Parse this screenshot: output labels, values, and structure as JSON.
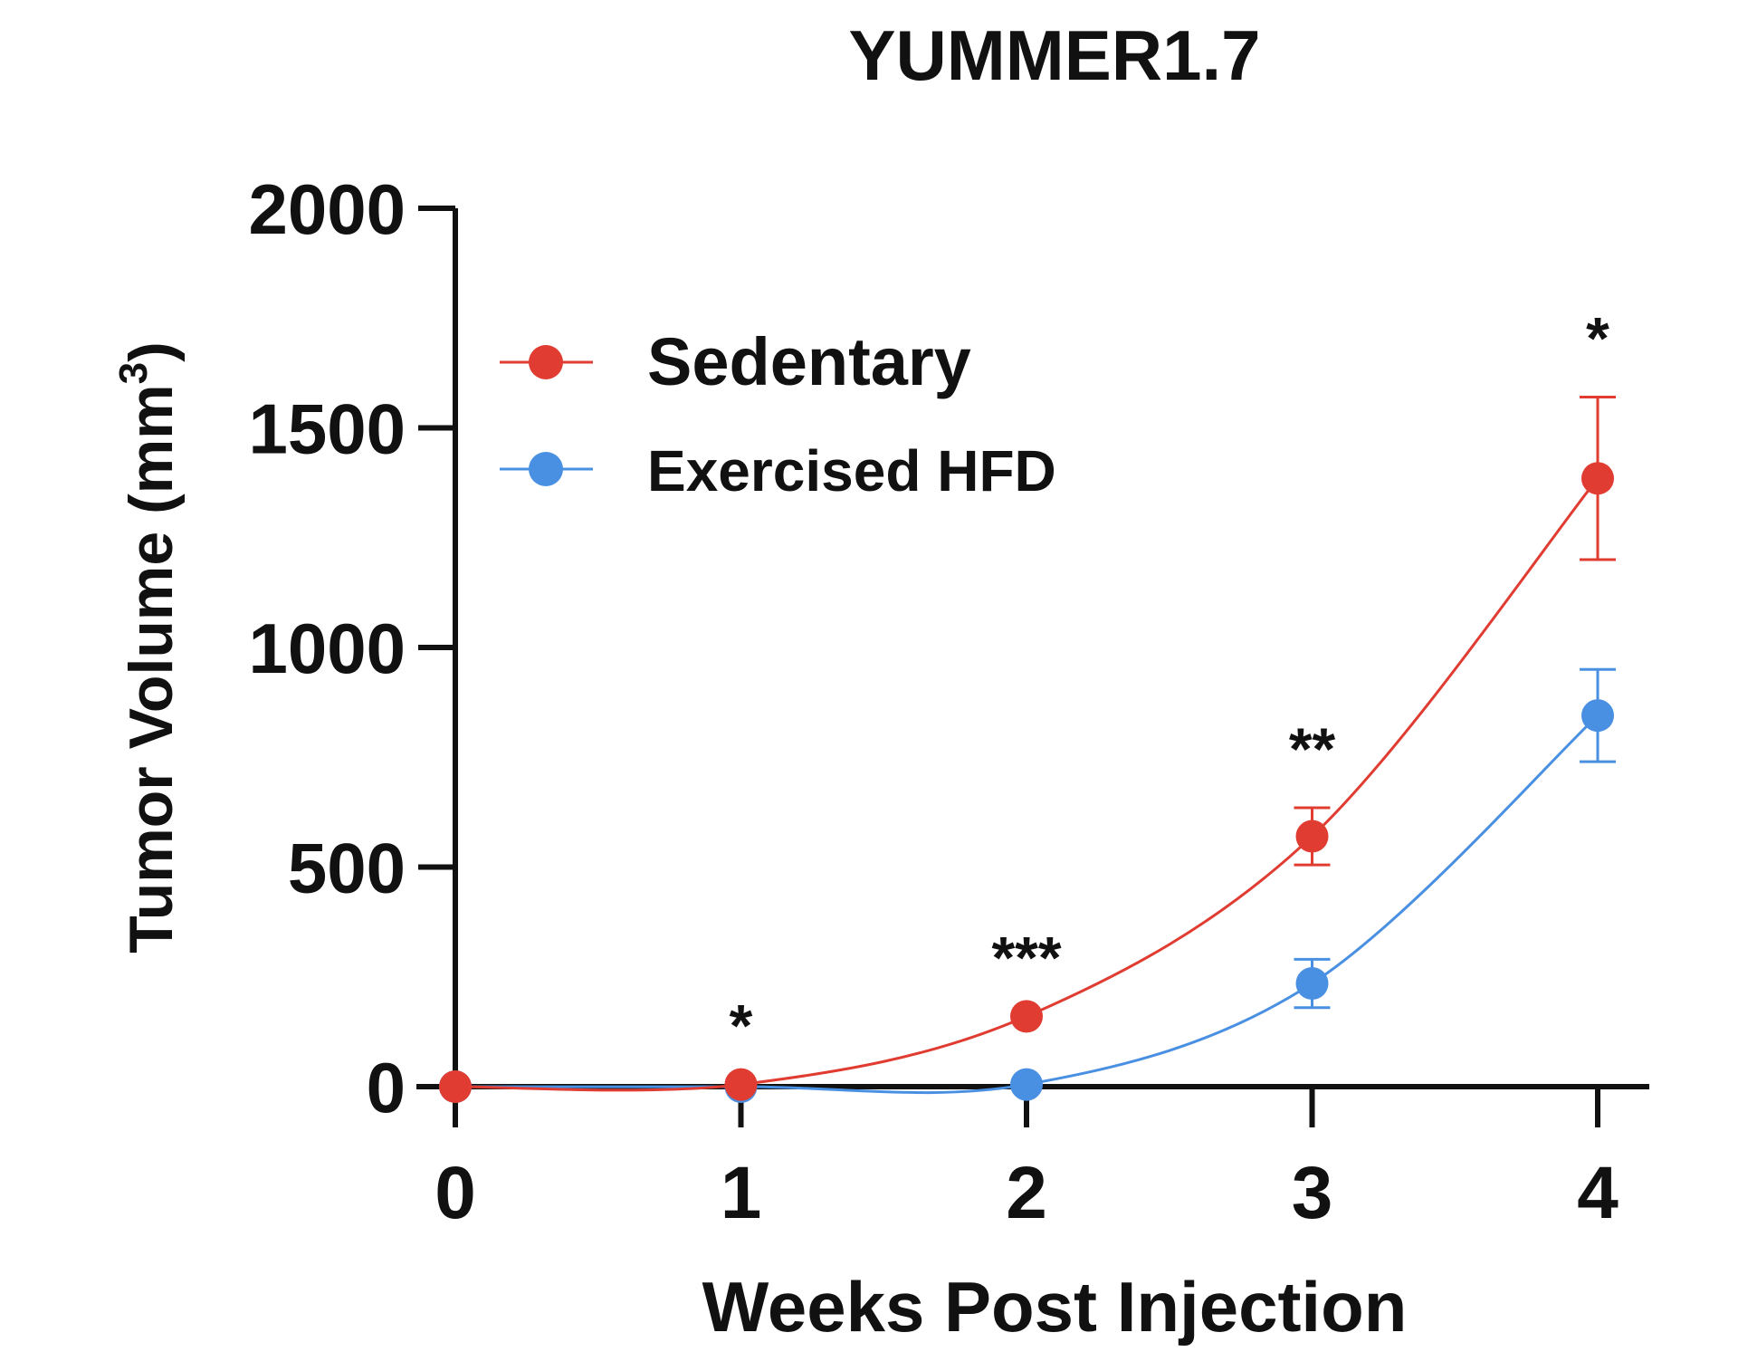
{
  "chart_data": {
    "type": "line",
    "title": "YUMMER1.7",
    "xlabel": "Weeks Post Injection",
    "ylabel_main": "Tumor Volume (mm",
    "ylabel_sup": "3",
    "ylabel_close": ")",
    "x": [
      0,
      1,
      2,
      3,
      4
    ],
    "x_ticks": [
      "0",
      "1",
      "2",
      "3",
      "4"
    ],
    "y_ticks": [
      "0",
      "500",
      "1000",
      "1500",
      "2000"
    ],
    "xlim": [
      0,
      4
    ],
    "ylim": [
      0,
      2000
    ],
    "grid": false,
    "legend_position": "top-left",
    "series": [
      {
        "name": "Sedentary",
        "color": "#e03c31",
        "values": [
          0,
          5,
          160,
          570,
          1385
        ],
        "error": [
          0,
          0,
          0,
          65,
          185
        ]
      },
      {
        "name": "Exercised HFD",
        "color": "#4a90e2",
        "values": [
          0,
          0,
          5,
          235,
          845
        ],
        "error": [
          0,
          0,
          0,
          55,
          105
        ]
      }
    ],
    "annotations": [
      {
        "x": 1,
        "y": 5,
        "text": "*"
      },
      {
        "x": 2,
        "y": 160,
        "text": "***"
      },
      {
        "x": 3,
        "y": 635,
        "text": "**"
      },
      {
        "x": 4,
        "y": 1570,
        "text": "*"
      }
    ]
  }
}
